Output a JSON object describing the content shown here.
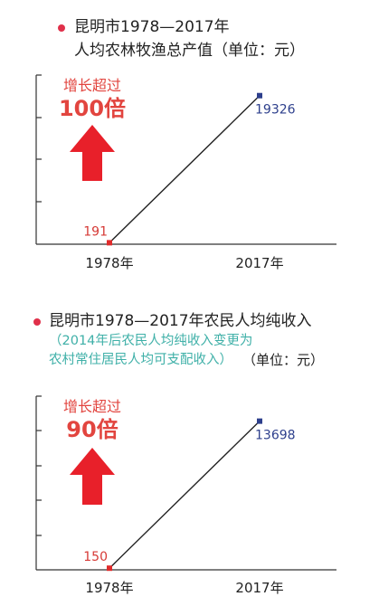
{
  "chart_data": [
    {
      "type": "line",
      "title": "昆明市1978—2017年",
      "subtitle": "人均农林牧渔总产值（单位：元）",
      "note": "",
      "unit": "",
      "categories": [
        "1978年",
        "2017年"
      ],
      "values": [
        191,
        19326
      ],
      "data_labels": [
        "191",
        "19326"
      ],
      "annotation": {
        "line1": "增长超过",
        "line2": "100倍"
      },
      "ylim": [
        0,
        22000
      ],
      "colors": {
        "line": "#222222",
        "start_point": "#e02b2b",
        "end_point": "#2d3f8c",
        "arrow": "#e8202a"
      }
    },
    {
      "type": "line",
      "title": "昆明市1978—2017年农民人均纯收入",
      "subtitle": "",
      "note": "（2014年后农民人均纯收入变更为农村常住居民人均可支配收入）",
      "note_lines": [
        "（2014年后农民人均纯收入变更为",
        "农村常住居民人均可支配收入）"
      ],
      "unit": "（单位：元）",
      "categories": [
        "1978年",
        "2017年"
      ],
      "values": [
        150,
        13698
      ],
      "data_labels": [
        "150",
        "13698"
      ],
      "annotation": {
        "line1": "增长超过",
        "line2": "90倍"
      },
      "ylim": [
        0,
        16000
      ],
      "colors": {
        "line": "#222222",
        "start_point": "#e02b2b",
        "end_point": "#2d3f8c",
        "arrow": "#e8202a"
      }
    }
  ]
}
